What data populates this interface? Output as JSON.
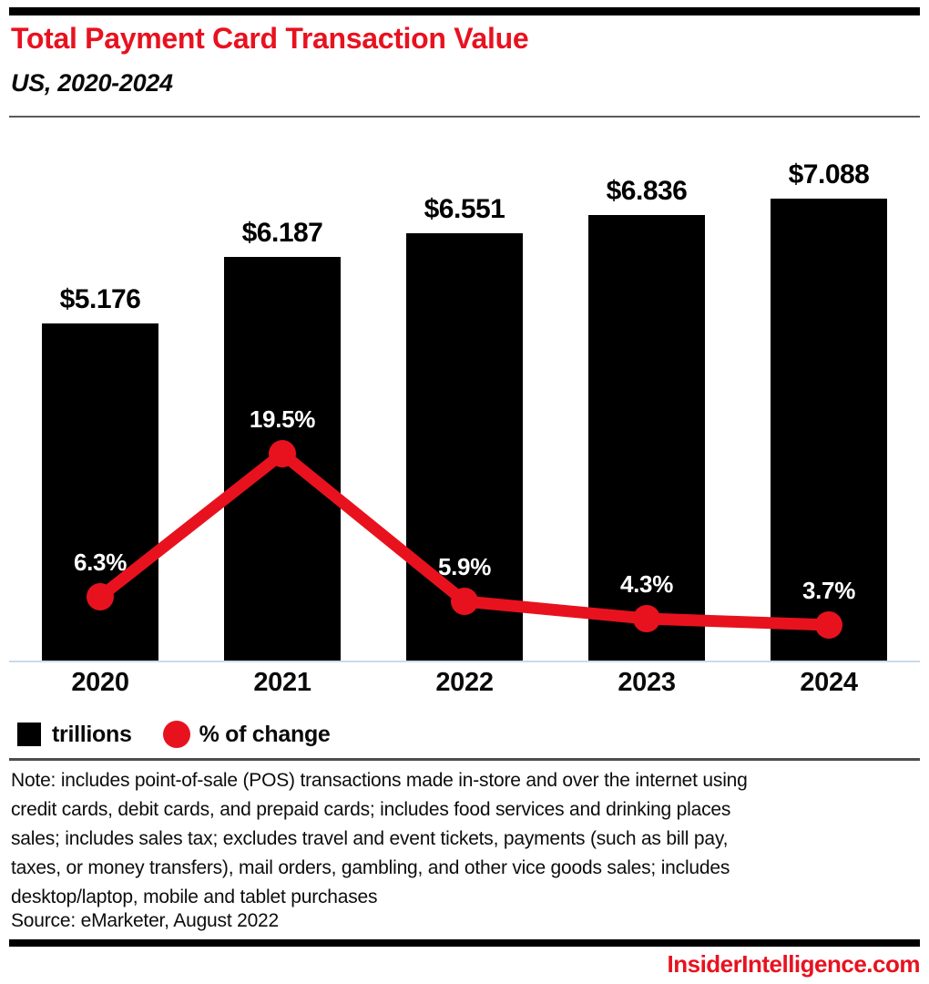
{
  "header": {
    "title": "Total Payment Card Transaction Value",
    "subtitle": "US, 2020-2024"
  },
  "chart_data": {
    "type": "bar",
    "subtype": "bar-line-combo",
    "title": "Total Payment Card Transaction Value",
    "subtitle": "US, 2020-2024",
    "categories": [
      "2020",
      "2021",
      "2022",
      "2023",
      "2024"
    ],
    "series": [
      {
        "name": "trillions",
        "type": "bar",
        "color": "#000000",
        "values": [
          5.176,
          6.187,
          6.551,
          6.836,
          7.088
        ],
        "labels": [
          "$5.176",
          "$6.187",
          "$6.551",
          "$6.836",
          "$7.088"
        ]
      },
      {
        "name": "% of change",
        "type": "line",
        "color": "#e8121f",
        "values": [
          6.3,
          19.5,
          5.9,
          4.3,
          3.7
        ],
        "labels": [
          "6.3%",
          "19.5%",
          "5.9%",
          "4.3%",
          "3.7%"
        ]
      }
    ],
    "legend": [
      {
        "label": "trillions",
        "swatch": "square",
        "color": "#000000"
      },
      {
        "label": "% of change",
        "swatch": "circle",
        "color": "#e8121f"
      }
    ],
    "axes": {
      "x_ticks": [
        "2020",
        "2021",
        "2022",
        "2023",
        "2024"
      ],
      "y_axis_visible": false,
      "gridlines": false,
      "value_labels_on_chart": true,
      "bar_axis_range": [
        0,
        8.2
      ],
      "line_axis_range_pct": [
        0,
        49
      ]
    }
  },
  "footer": {
    "note": "Note: includes point-of-sale (POS) transactions made in-store and over the internet using\ncredit cards, debit cards, and prepaid cards; includes food services and drinking places\nsales; includes sales tax; excludes travel and event tickets, payments (such as bill pay,\ntaxes, or money transfers), mail orders, gambling, and other vice goods sales; includes\ndesktop/laptop, mobile and tablet purchases",
    "source": "Source: eMarketer, August 2022",
    "brand": "InsiderIntelligence.com"
  },
  "colors": {
    "accent_red": "#e8121f",
    "bar_black": "#000000",
    "baseline_blue": "#ccd8ee",
    "divider_gray": "#555555"
  }
}
